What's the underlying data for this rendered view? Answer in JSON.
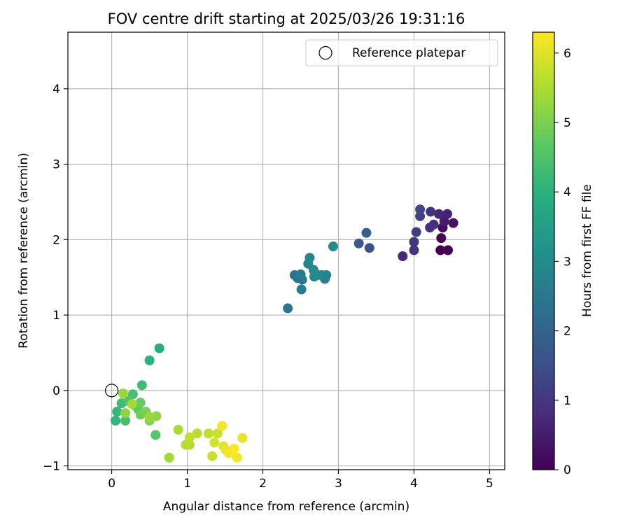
{
  "chart_data": {
    "type": "scatter",
    "title": "FOV centre drift starting at 2025/03/26 19:31:16",
    "xlabel": "Angular distance from reference (arcmin)",
    "ylabel": "Rotation from reference (arcmin)",
    "xlim": [
      -0.58,
      5.2
    ],
    "ylim": [
      -1.05,
      4.75
    ],
    "x_ticks": [
      0,
      1,
      2,
      3,
      4,
      5
    ],
    "y_ticks": [
      -1,
      0,
      1,
      2,
      3,
      4
    ],
    "x_tick_labels": [
      "0",
      "1",
      "2",
      "3",
      "4",
      "5"
    ],
    "y_tick_labels": [
      "−1",
      "0",
      "1",
      "2",
      "3",
      "4"
    ],
    "grid": true,
    "colormap": "viridis",
    "colorbar": {
      "label": "Hours from first FF file",
      "range": [
        0,
        6.3
      ],
      "ticks": [
        0,
        1,
        2,
        3,
        4,
        5,
        6
      ],
      "tick_labels": [
        "0",
        "1",
        "2",
        "3",
        "4",
        "5",
        "6"
      ]
    },
    "legend": {
      "position": "top-right",
      "entries": [
        {
          "label": "Reference platepar",
          "marker": "open-circle"
        }
      ]
    },
    "reference_point": {
      "x": 0,
      "y": 0
    },
    "points": [
      {
        "x": 4.35,
        "y": 1.86,
        "t": 0.0
      },
      {
        "x": 4.45,
        "y": 1.86,
        "t": 0.05
      },
      {
        "x": 4.36,
        "y": 2.02,
        "t": 0.1
      },
      {
        "x": 4.38,
        "y": 2.16,
        "t": 0.2
      },
      {
        "x": 4.52,
        "y": 2.22,
        "t": 0.35
      },
      {
        "x": 4.4,
        "y": 2.24,
        "t": 0.5
      },
      {
        "x": 4.44,
        "y": 2.34,
        "t": 0.6
      },
      {
        "x": 4.33,
        "y": 2.34,
        "t": 0.7
      },
      {
        "x": 4.26,
        "y": 2.2,
        "t": 0.8
      },
      {
        "x": 4.21,
        "y": 2.16,
        "t": 0.85
      },
      {
        "x": 4.22,
        "y": 2.37,
        "t": 0.9
      },
      {
        "x": 3.85,
        "y": 1.78,
        "t": 0.7
      },
      {
        "x": 4.0,
        "y": 1.86,
        "t": 0.9
      },
      {
        "x": 4.0,
        "y": 1.97,
        "t": 1.0
      },
      {
        "x": 4.03,
        "y": 2.1,
        "t": 1.1
      },
      {
        "x": 4.08,
        "y": 2.31,
        "t": 1.2
      },
      {
        "x": 4.08,
        "y": 2.4,
        "t": 1.3
      },
      {
        "x": 3.41,
        "y": 1.89,
        "t": 1.6
      },
      {
        "x": 3.27,
        "y": 1.95,
        "t": 1.8
      },
      {
        "x": 3.37,
        "y": 2.09,
        "t": 1.9
      },
      {
        "x": 2.33,
        "y": 1.09,
        "t": 2.4
      },
      {
        "x": 2.42,
        "y": 1.53,
        "t": 2.3
      },
      {
        "x": 2.46,
        "y": 1.49,
        "t": 2.4
      },
      {
        "x": 2.52,
        "y": 1.47,
        "t": 2.5
      },
      {
        "x": 2.5,
        "y": 1.54,
        "t": 2.6
      },
      {
        "x": 2.51,
        "y": 1.34,
        "t": 2.7
      },
      {
        "x": 2.6,
        "y": 1.68,
        "t": 2.8
      },
      {
        "x": 2.62,
        "y": 1.76,
        "t": 2.9
      },
      {
        "x": 2.67,
        "y": 1.6,
        "t": 3.0
      },
      {
        "x": 2.68,
        "y": 1.51,
        "t": 3.0
      },
      {
        "x": 2.73,
        "y": 1.53,
        "t": 2.9
      },
      {
        "x": 2.78,
        "y": 1.53,
        "t": 2.8
      },
      {
        "x": 2.82,
        "y": 1.48,
        "t": 2.7
      },
      {
        "x": 2.84,
        "y": 1.53,
        "t": 2.8
      },
      {
        "x": 2.93,
        "y": 1.91,
        "t": 3.0
      },
      {
        "x": 0.63,
        "y": 0.56,
        "t": 3.9
      },
      {
        "x": 0.5,
        "y": 0.4,
        "t": 4.0
      },
      {
        "x": 0.4,
        "y": 0.07,
        "t": 4.3
      },
      {
        "x": 0.05,
        "y": -0.4,
        "t": 4.1
      },
      {
        "x": 0.07,
        "y": -0.28,
        "t": 4.2
      },
      {
        "x": 0.13,
        "y": -0.17,
        "t": 4.3
      },
      {
        "x": 0.18,
        "y": -0.4,
        "t": 4.4
      },
      {
        "x": 0.22,
        "y": -0.14,
        "t": 4.5
      },
      {
        "x": 0.28,
        "y": -0.05,
        "t": 4.4
      },
      {
        "x": 0.31,
        "y": -0.2,
        "t": 4.6
      },
      {
        "x": 0.35,
        "y": -0.25,
        "t": 4.7
      },
      {
        "x": 0.38,
        "y": -0.16,
        "t": 4.8
      },
      {
        "x": 0.38,
        "y": -0.32,
        "t": 4.9
      },
      {
        "x": 0.45,
        "y": -0.28,
        "t": 5.0
      },
      {
        "x": 0.5,
        "y": -0.4,
        "t": 5.1
      },
      {
        "x": 0.58,
        "y": -0.59,
        "t": 4.6
      },
      {
        "x": 0.15,
        "y": -0.04,
        "t": 5.3
      },
      {
        "x": 0.18,
        "y": -0.3,
        "t": 5.2
      },
      {
        "x": 0.27,
        "y": -0.18,
        "t": 5.4
      },
      {
        "x": 0.5,
        "y": -0.35,
        "t": 5.3
      },
      {
        "x": 0.59,
        "y": -0.34,
        "t": 5.2
      },
      {
        "x": 0.76,
        "y": -0.89,
        "t": 5.4
      },
      {
        "x": 0.88,
        "y": -0.52,
        "t": 5.5
      },
      {
        "x": 0.98,
        "y": -0.72,
        "t": 5.6
      },
      {
        "x": 1.03,
        "y": -0.72,
        "t": 5.5
      },
      {
        "x": 1.03,
        "y": -0.62,
        "t": 5.7
      },
      {
        "x": 1.13,
        "y": -0.57,
        "t": 5.6
      },
      {
        "x": 1.28,
        "y": -0.57,
        "t": 5.7
      },
      {
        "x": 1.33,
        "y": -0.87,
        "t": 5.8
      },
      {
        "x": 1.36,
        "y": -0.69,
        "t": 5.9
      },
      {
        "x": 1.4,
        "y": -0.57,
        "t": 5.8
      },
      {
        "x": 1.46,
        "y": -0.47,
        "t": 6.2
      },
      {
        "x": 1.48,
        "y": -0.74,
        "t": 6.0
      },
      {
        "x": 1.51,
        "y": -0.79,
        "t": 6.1
      },
      {
        "x": 1.55,
        "y": -0.83,
        "t": 6.2
      },
      {
        "x": 1.62,
        "y": -0.77,
        "t": 6.3
      },
      {
        "x": 1.66,
        "y": -0.89,
        "t": 6.2
      },
      {
        "x": 1.73,
        "y": -0.63,
        "t": 6.1
      }
    ]
  }
}
